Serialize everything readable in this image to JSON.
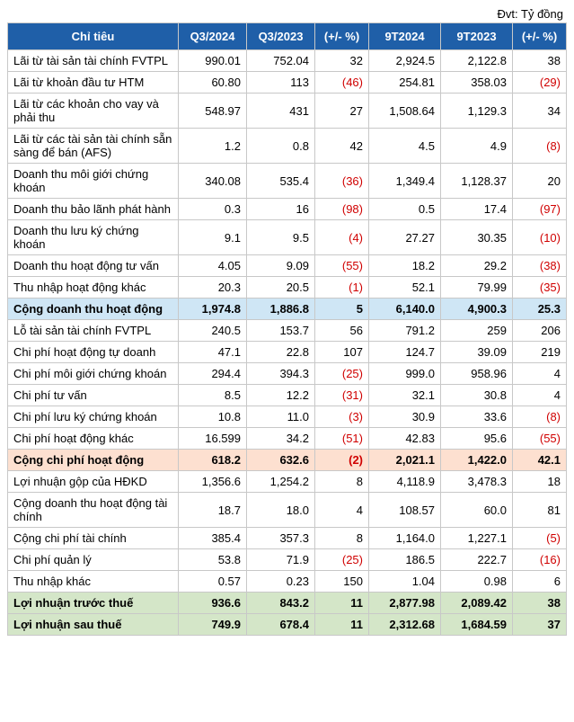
{
  "unit_label": "Đvt: Tỷ đồng",
  "columns": [
    "Chỉ tiêu",
    "Q3/2024",
    "Q3/2023",
    "(+/- %)",
    "9T2024",
    "9T2023",
    "(+/- %)"
  ],
  "rows": [
    {
      "cells": [
        "Lãi từ tài sản tài chính FVTPL",
        "990.01",
        "752.04",
        "32",
        "2,924.5",
        "2,122.8",
        "38"
      ],
      "neg": [],
      "bold": false,
      "hl": ""
    },
    {
      "cells": [
        "Lãi từ khoản đầu tư HTM",
        "60.80",
        "113",
        "(46)",
        "254.81",
        "358.03",
        "(29)"
      ],
      "neg": [
        3,
        6
      ],
      "bold": false,
      "hl": ""
    },
    {
      "cells": [
        "Lãi từ các khoản cho vay và phải thu",
        "548.97",
        "431",
        "27",
        "1,508.64",
        "1,129.3",
        "34"
      ],
      "neg": [],
      "bold": false,
      "hl": ""
    },
    {
      "cells": [
        "Lãi từ các tài sản tài chính sẵn sàng để bán (AFS)",
        "1.2",
        "0.8",
        "42",
        "4.5",
        "4.9",
        "(8)"
      ],
      "neg": [
        6
      ],
      "bold": false,
      "hl": ""
    },
    {
      "cells": [
        "Doanh thu môi giới chứng khoán",
        "340.08",
        "535.4",
        "(36)",
        "1,349.4",
        "1,128.37",
        "20"
      ],
      "neg": [
        3
      ],
      "bold": false,
      "hl": ""
    },
    {
      "cells": [
        "Doanh thu bảo lãnh phát hành",
        "0.3",
        "16",
        "(98)",
        "0.5",
        "17.4",
        "(97)"
      ],
      "neg": [
        3,
        6
      ],
      "bold": false,
      "hl": ""
    },
    {
      "cells": [
        "Doanh thu lưu ký chứng khoán",
        "9.1",
        "9.5",
        "(4)",
        "27.27",
        "30.35",
        "(10)"
      ],
      "neg": [
        3,
        6
      ],
      "bold": false,
      "hl": ""
    },
    {
      "cells": [
        "Doanh thu hoạt động tư vấn",
        "4.05",
        "9.09",
        "(55)",
        "18.2",
        "29.2",
        "(38)"
      ],
      "neg": [
        3,
        6
      ],
      "bold": false,
      "hl": ""
    },
    {
      "cells": [
        "Thu nhập hoạt động khác",
        "20.3",
        "20.5",
        "(1)",
        "52.1",
        "79.99",
        "(35)"
      ],
      "neg": [
        3,
        6
      ],
      "bold": false,
      "hl": ""
    },
    {
      "cells": [
        "Cộng doanh thu hoạt động",
        "1,974.8",
        "1,886.8",
        "5",
        "6,140.0",
        "4,900.3",
        "25.3"
      ],
      "neg": [],
      "bold": true,
      "hl": "blue"
    },
    {
      "cells": [
        "Lỗ tài sản tài chính FVTPL",
        "240.5",
        "153.7",
        "56",
        "791.2",
        "259",
        "206"
      ],
      "neg": [],
      "bold": false,
      "hl": ""
    },
    {
      "cells": [
        "Chi phí hoạt động tự doanh",
        "47.1",
        "22.8",
        "107",
        "124.7",
        "39.09",
        "219"
      ],
      "neg": [],
      "bold": false,
      "hl": ""
    },
    {
      "cells": [
        "Chi phí môi giới chứng khoán",
        "294.4",
        "394.3",
        "(25)",
        "999.0",
        "958.96",
        "4"
      ],
      "neg": [
        3
      ],
      "bold": false,
      "hl": ""
    },
    {
      "cells": [
        "Chi phí tư vấn",
        "8.5",
        "12.2",
        "(31)",
        "32.1",
        "30.8",
        "4"
      ],
      "neg": [
        3
      ],
      "bold": false,
      "hl": ""
    },
    {
      "cells": [
        "Chi phí lưu ký chứng khoán",
        "10.8",
        "11.0",
        "(3)",
        "30.9",
        "33.6",
        "(8)"
      ],
      "neg": [
        3,
        6
      ],
      "bold": false,
      "hl": ""
    },
    {
      "cells": [
        "Chi phí hoạt động khác",
        "16.599",
        "34.2",
        "(51)",
        "42.83",
        "95.6",
        "(55)"
      ],
      "neg": [
        3,
        6
      ],
      "bold": false,
      "hl": ""
    },
    {
      "cells": [
        "Cộng chi phí hoạt động",
        "618.2",
        "632.6",
        "(2)",
        "2,021.1",
        "1,422.0",
        "42.1"
      ],
      "neg": [
        3
      ],
      "bold": true,
      "hl": "red"
    },
    {
      "cells": [
        "Lợi nhuận gộp của HĐKD",
        "1,356.6",
        "1,254.2",
        "8",
        "4,118.9",
        "3,478.3",
        "18"
      ],
      "neg": [],
      "bold": false,
      "hl": ""
    },
    {
      "cells": [
        "Cộng doanh thu hoạt động tài chính",
        "18.7",
        "18.0",
        "4",
        "108.57",
        "60.0",
        "81"
      ],
      "neg": [],
      "bold": false,
      "hl": ""
    },
    {
      "cells": [
        "Cộng chi phí tài chính",
        "385.4",
        "357.3",
        "8",
        "1,164.0",
        "1,227.1",
        "(5)"
      ],
      "neg": [
        6
      ],
      "bold": false,
      "hl": ""
    },
    {
      "cells": [
        "Chi phí quản lý",
        "53.8",
        "71.9",
        "(25)",
        "186.5",
        "222.7",
        "(16)"
      ],
      "neg": [
        3,
        6
      ],
      "bold": false,
      "hl": ""
    },
    {
      "cells": [
        "Thu nhập khác",
        "0.57",
        "0.23",
        "150",
        "1.04",
        "0.98",
        "6"
      ],
      "neg": [],
      "bold": false,
      "hl": ""
    },
    {
      "cells": [
        "Lợi nhuận trước thuế",
        "936.6",
        "843.2",
        "11",
        "2,877.98",
        "2,089.42",
        "38"
      ],
      "neg": [],
      "bold": true,
      "hl": "green"
    },
    {
      "cells": [
        "Lợi nhuận sau thuế",
        "749.9",
        "678.4",
        "11",
        "2,312.68",
        "1,684.59",
        "37"
      ],
      "neg": [],
      "bold": true,
      "hl": "green"
    }
  ]
}
